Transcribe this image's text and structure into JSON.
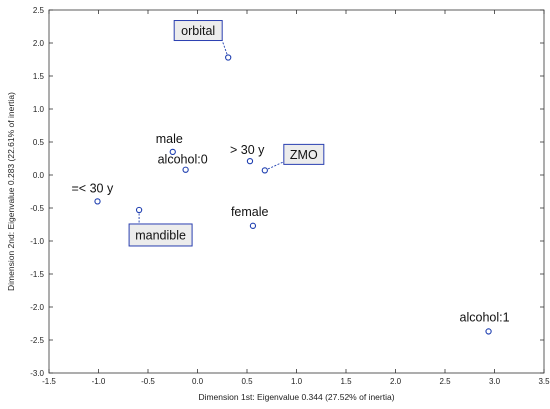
{
  "chart_data": {
    "type": "scatter",
    "xlabel": "Dimension 1st: Eigenvalue 0.344 (27.52% of inertia)",
    "ylabel": "Dimension 2nd: Eigenvalue 0.283 (22.61% of inertia)",
    "xlim": [
      -1.5,
      3.5
    ],
    "ylim": [
      -3.0,
      2.5
    ],
    "xticks": [
      "-1.5",
      "-1.0",
      "-0.5",
      "0.0",
      "0.5",
      "1.0",
      "1.5",
      "2.0",
      "2.5",
      "3.0",
      "3.5"
    ],
    "yticks": [
      "2.5",
      "2.0",
      "1.5",
      "1.0",
      "0.5",
      "0.0",
      "-0.5",
      "-1.0",
      "-1.5",
      "-2.0",
      "-2.5",
      "-3.0"
    ],
    "grid": false,
    "marker_color": "#1f3fb0",
    "points": [
      {
        "label": "orbital",
        "x": 0.31,
        "y": 1.78,
        "boxed": true
      },
      {
        "label": "male",
        "x": -0.25,
        "y": 0.35,
        "boxed": false
      },
      {
        "label": "alcohol:0",
        "x": -0.12,
        "y": 0.08,
        "boxed": false
      },
      {
        "label": "> 30 y",
        "x": 0.53,
        "y": 0.21,
        "boxed": false
      },
      {
        "label": "ZMO",
        "x": 0.68,
        "y": 0.07,
        "boxed": true
      },
      {
        "label": "=< 30 y",
        "x": -1.01,
        "y": -0.4,
        "boxed": false
      },
      {
        "label": "mandible",
        "x": -0.59,
        "y": -0.53,
        "boxed": true
      },
      {
        "label": "female",
        "x": 0.56,
        "y": -0.77,
        "boxed": false
      },
      {
        "label": "alcohol:1",
        "x": 2.94,
        "y": -2.37,
        "boxed": false
      }
    ]
  }
}
